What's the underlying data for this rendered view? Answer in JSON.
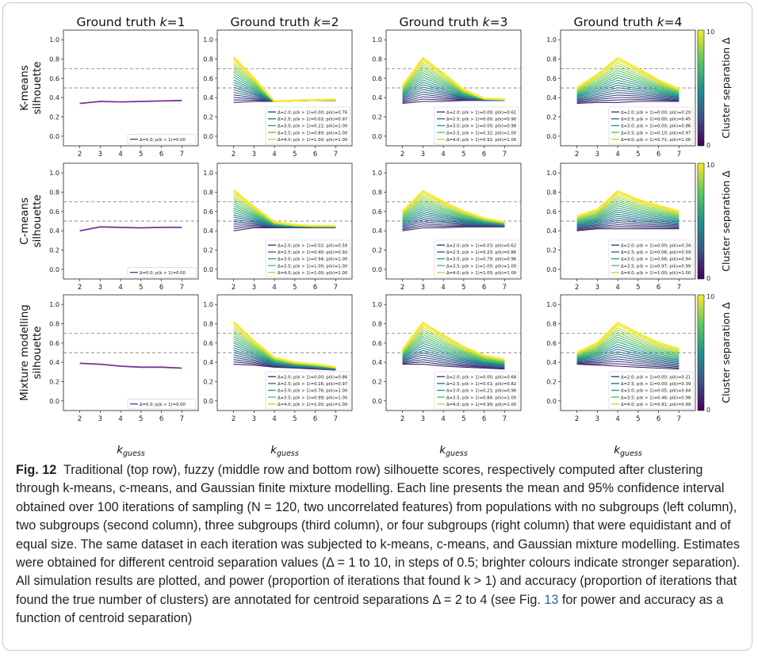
{
  "figure": {
    "column_titles": [
      "Ground truth k=1",
      "Ground truth k=2",
      "Ground truth k=3",
      "Ground truth k=4"
    ],
    "row_labels": [
      [
        "K-means",
        "silhouette"
      ],
      [
        "C-means",
        "silhouette"
      ],
      [
        "Mixture modelling",
        "silhouette"
      ]
    ],
    "x_axis_label": "k_guess",
    "colorbar": {
      "label": "Cluster separation Δ",
      "min_label": "0",
      "max_label": "10",
      "colors": [
        "#440154",
        "#3b528b",
        "#21918c",
        "#5ec962",
        "#fde725"
      ]
    },
    "reference_lines": [
      0.5,
      0.7
    ],
    "mean_line_color": "#7b3294"
  },
  "caption": {
    "label": "Fig. 12",
    "text_before_ref": "Traditional (top row), fuzzy (middle row and bottom row) silhouette scores, respectively computed after clustering through k-means, c-means, and Gaussian finite mixture modelling. Each line presents the mean and 95% confidence interval obtained over 100 iterations of sampling (N = 120, two uncorrelated features) from populations with no subgroups (left column), two subgroups (second column), three subgroups (third column), or four subgroups (right column) that were equidistant and of equal size. The same dataset in each iteration was subjected to k-means, c-means, and Gaussian mixture modelling. Estimates were obtained for different centroid separation values (Δ = 1 to 10, in steps of 0.5; brighter colours indicate stronger separation). All simulation results are plotted, and power (proportion of iterations that found k > 1) and accuracy (proportion of iterations that found the true number of clusters) are annotated for centroid separations Δ = 2 to 4 (see Fig. ",
    "ref": "13",
    "text_after_ref": " for power and accuracy as a function of centroid separation)"
  },
  "chart_data": {
    "type": "line",
    "layout": "3x4 grid",
    "x": [
      2,
      3,
      4,
      5,
      6,
      7
    ],
    "xlabel": "k_guess",
    "ylim": [
      -0.1,
      1.1
    ],
    "yticks": [
      0.0,
      0.2,
      0.4,
      0.6,
      0.8,
      1.0
    ],
    "grid": false,
    "legend_position": "bottom-right",
    "colorbar": {
      "label": "Cluster separation Δ",
      "range": [
        0,
        10
      ]
    },
    "panels": [
      {
        "row": 0,
        "col": 0,
        "title": "Ground truth k=1",
        "ylabel": "K-means silhouette",
        "series_low": [
          0.34,
          0.36,
          0.355,
          0.36,
          0.365,
          0.37
        ],
        "series_high": null,
        "legend": [
          "Δ=0.0; p(k > 1)=0.00"
        ]
      },
      {
        "row": 0,
        "col": 1,
        "title": "Ground truth k=2",
        "series_low": [
          0.35,
          0.36,
          0.36,
          0.365,
          0.37,
          0.37
        ],
        "series_high": [
          0.82,
          0.6,
          0.36,
          0.37,
          0.375,
          0.38
        ],
        "legend": [
          "Δ=2.0; p(k > 1)=0.00; p(k)=0.76",
          "Δ=2.5; p(k > 1)=0.02; p(k)=0.97",
          "Δ=3.0; p(k > 1)=0.21; p(k)=1.00",
          "Δ=3.5; p(k > 1)=0.89; p(k)=1.00",
          "Δ=4.0; p(k > 1)=1.00; p(k)=1.00"
        ]
      },
      {
        "row": 0,
        "col": 2,
        "title": "Ground truth k=3",
        "series_low": [
          0.34,
          0.36,
          0.36,
          0.37,
          0.37,
          0.37
        ],
        "series_high": [
          0.52,
          0.81,
          0.65,
          0.48,
          0.39,
          0.38
        ],
        "legend": [
          "Δ=2.0; p(k > 1)=0.00; p(k)=0.61",
          "Δ=2.5; p(k > 1)=0.00; p(k)=0.90",
          "Δ=3.0; p(k > 1)=0.00; p(k)=0.98",
          "Δ=3.5; p(k > 1)=0.32; p(k)=1.00",
          "Δ=4.0; p(k > 1)=0.91; p(k)=1.00"
        ]
      },
      {
        "row": 0,
        "col": 3,
        "title": "Ground truth k=4",
        "series_low": [
          0.34,
          0.35,
          0.35,
          0.36,
          0.36,
          0.36
        ],
        "series_high": [
          0.5,
          0.64,
          0.81,
          0.7,
          0.58,
          0.49
        ],
        "legend": [
          "Δ=2.0; p(k > 1)=0.00; p(k)=0.20",
          "Δ=2.5; p(k > 1)=0.00; p(k)=0.45",
          "Δ=3.0; p(k > 1)=0.00; p(k)=0.86",
          "Δ=3.5; p(k > 1)=0.10; p(k)=0.97",
          "Δ=4.0; p(k > 1)=0.71; p(k)=1.00"
        ]
      },
      {
        "row": 1,
        "col": 0,
        "ylabel": "C-means silhouette",
        "series_low": [
          0.4,
          0.44,
          0.435,
          0.43,
          0.435,
          0.435
        ],
        "series_high": null,
        "legend": [
          "Δ=0.0; p(k > 1)=0.00"
        ]
      },
      {
        "row": 1,
        "col": 1,
        "series_low": [
          0.4,
          0.43,
          0.43,
          0.43,
          0.43,
          0.43
        ],
        "series_high": [
          0.82,
          0.65,
          0.49,
          0.46,
          0.45,
          0.45
        ],
        "legend": [
          "Δ=2.0; p(k > 1)=0.02; p(k)=0.58",
          "Δ=2.5; p(k > 1)=0.40; p(k)=0.92",
          "Δ=3.0; p(k > 1)=0.94; p(k)=1.00",
          "Δ=3.5; p(k > 1)=1.00; p(k)=1.00",
          "Δ=4.0; p(k > 1)=1.00; p(k)=1.00"
        ]
      },
      {
        "row": 1,
        "col": 2,
        "series_low": [
          0.4,
          0.43,
          0.43,
          0.44,
          0.44,
          0.44
        ],
        "series_high": [
          0.6,
          0.81,
          0.7,
          0.6,
          0.53,
          0.49
        ],
        "legend": [
          "Δ=2.0; p(k > 1)=0.03; p(k)=0.62",
          "Δ=2.5; p(k > 1)=0.23; p(k)=0.86",
          "Δ=3.0; p(k > 1)=0.79; p(k)=0.96",
          "Δ=3.5; p(k > 1)=1.00; p(k)=1.00",
          "Δ=4.0; p(k > 1)=1.00; p(k)=1.00"
        ]
      },
      {
        "row": 1,
        "col": 3,
        "series_low": [
          0.4,
          0.42,
          0.42,
          0.42,
          0.42,
          0.42
        ],
        "series_high": [
          0.55,
          0.62,
          0.81,
          0.72,
          0.66,
          0.6
        ],
        "legend": [
          "Δ=2.0; p(k > 1)=0.00; p(k)=0.34",
          "Δ=2.5; p(k > 1)=0.06; p(k)=0.59",
          "Δ=3.0; p(k > 1)=0.66; p(k)=0.94",
          "Δ=3.5; p(k > 1)=0.97; p(k)=0.99",
          "Δ=4.0; p(k > 1)=1.00; p(k)=1.00"
        ]
      },
      {
        "row": 2,
        "col": 0,
        "ylabel": "Mixture modelling silhouette",
        "series_low": [
          0.39,
          0.38,
          0.36,
          0.35,
          0.35,
          0.34
        ],
        "series_high": null,
        "legend": [
          "Δ=0.0; p(k > 1)=0.00"
        ]
      },
      {
        "row": 2,
        "col": 1,
        "series_low": [
          0.38,
          0.37,
          0.35,
          0.34,
          0.33,
          0.32
        ],
        "series_high": [
          0.82,
          0.62,
          0.45,
          0.4,
          0.38,
          0.35
        ],
        "legend": [
          "Δ=2.0; p(k > 1)=0.00; p(k)=0.86",
          "Δ=2.5; p(k > 1)=0.16; p(k)=0.97",
          "Δ=3.0; p(k > 1)=0.76; p(k)=1.00",
          "Δ=3.5; p(k > 1)=0.99; p(k)=1.00",
          "Δ=4.0; p(k > 1)=1.00; p(k)=1.00"
        ]
      },
      {
        "row": 2,
        "col": 2,
        "series_low": [
          0.38,
          0.38,
          0.36,
          0.35,
          0.34,
          0.33
        ],
        "series_high": [
          0.53,
          0.81,
          0.68,
          0.56,
          0.47,
          0.43
        ],
        "legend": [
          "Δ=2.0; p(k > 1)=0.00; p(k)=0.68",
          "Δ=2.5; p(k > 1)=0.01; p(k)=0.82",
          "Δ=3.0; p(k > 1)=0.21; p(k)=0.96",
          "Δ=3.5; p(k > 1)=0.84; p(k)=1.00",
          "Δ=4.0; p(k > 1)=0.99; p(k)=1.00"
        ]
      },
      {
        "row": 2,
        "col": 3,
        "series_low": [
          0.38,
          0.37,
          0.36,
          0.35,
          0.34,
          0.33
        ],
        "series_high": [
          0.5,
          0.6,
          0.81,
          0.7,
          0.6,
          0.54
        ],
        "legend": [
          "Δ=2.0; p(k > 1)=0.00; p(k)=0.21",
          "Δ=2.5; p(k > 1)=0.00; p(k)=0.39",
          "Δ=3.0; p(k > 1)=0.05; p(k)=0.84",
          "Δ=3.5; p(k > 1)=0.46; p(k)=0.98",
          "Δ=4.0; p(k > 1)=0.91; p(k)=0.99"
        ]
      }
    ]
  }
}
